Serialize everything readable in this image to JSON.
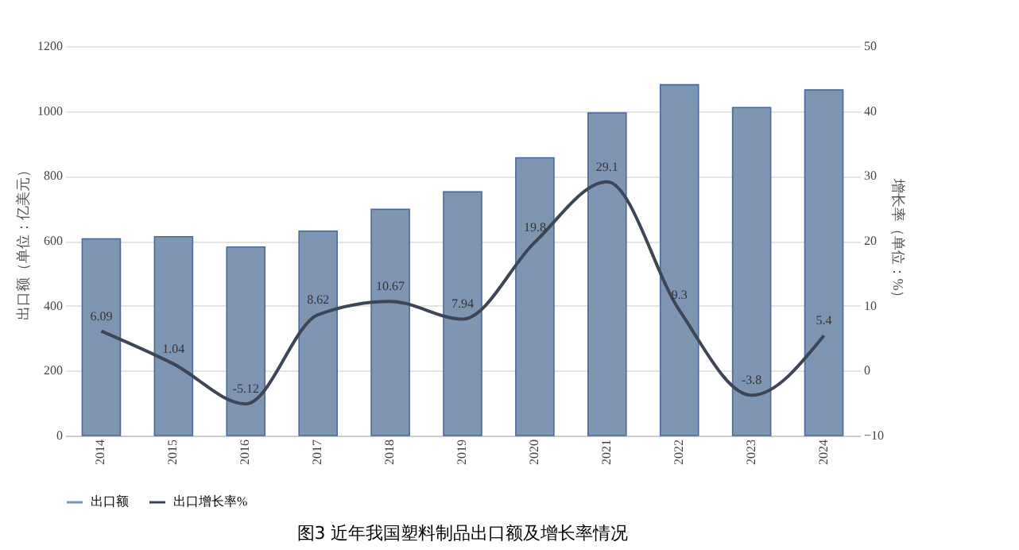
{
  "chart_data": {
    "type": "bar",
    "title": "图3 近年我国塑料制品出口额及增长率情况",
    "ylabel": "出口额（单位：亿美元）",
    "y2label": "增长率（单位：%）",
    "categories": [
      "2014",
      "2015",
      "2016",
      "2017",
      "2018",
      "2019",
      "2020",
      "2021",
      "2022",
      "2023",
      "2024"
    ],
    "series": [
      {
        "name": "出口额",
        "color": "#7f96b3",
        "values": [
          606,
          613,
          581,
          630,
          697,
          751,
          856,
          994,
          1081,
          1011,
          1065
        ]
      },
      {
        "name": "出口增长率%",
        "type": "line",
        "axis": "y2",
        "color": "#3d4656",
        "values": [
          6.09,
          1.04,
          -5.12,
          8.62,
          10.67,
          7.94,
          19.8,
          29.1,
          9.3,
          -3.8,
          5.4
        ],
        "value_labels": [
          "6.09",
          "1.04",
          "-5.12",
          "8.62",
          "10.67",
          "7.94",
          "19.8",
          "29.1",
          "9.3",
          "-3.8",
          "5.4"
        ]
      }
    ],
    "ylim": [
      0,
      1200
    ],
    "yticks": [
      0,
      200,
      400,
      600,
      800,
      1000,
      1200
    ],
    "y2lim": [
      -10,
      50
    ],
    "y2ticks": [
      -10,
      0,
      10,
      20,
      30,
      40,
      50
    ],
    "grid": "y",
    "legend": "bottom",
    "marker": "none",
    "line_style": "solid"
  }
}
